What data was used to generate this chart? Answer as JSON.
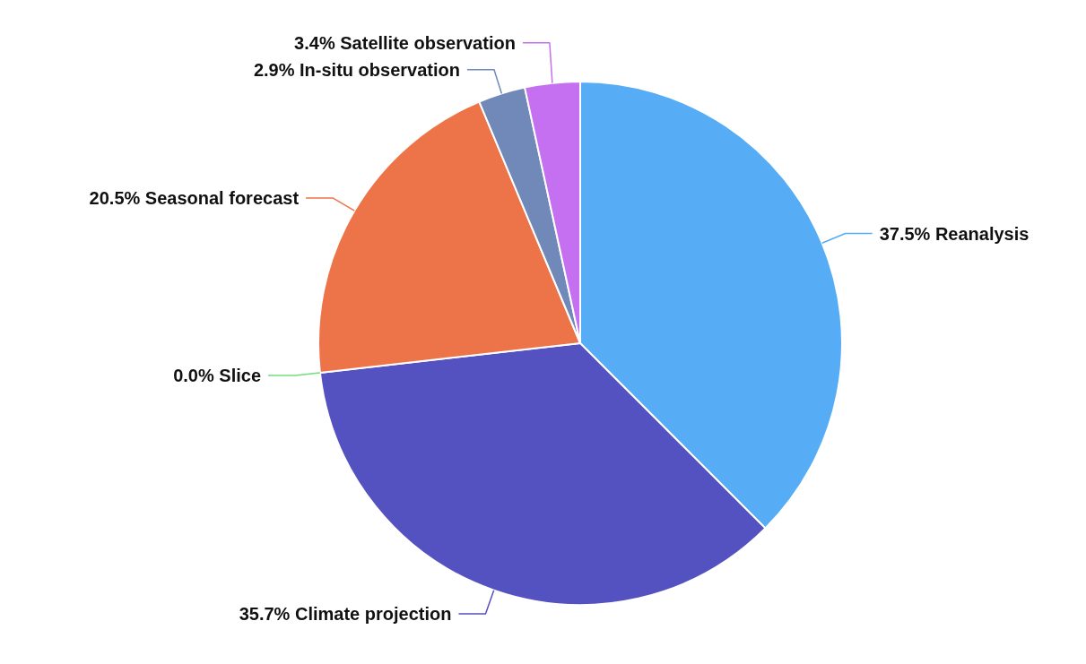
{
  "chart_data": {
    "type": "pie",
    "categories": [
      "Reanalysis",
      "Climate projection",
      "Slice",
      "Seasonal forecast",
      "In-situ observation",
      "Satellite observation"
    ],
    "values": [
      37.5,
      35.7,
      0.0,
      20.5,
      2.9,
      3.4
    ],
    "value_labels": [
      "37.5%",
      "35.7%",
      "0.0%",
      "20.5%",
      "2.9%",
      "3.4%"
    ],
    "colors": [
      "#56adf5",
      "#5451c0",
      "#6de07a",
      "#ec7448",
      "#7189b9",
      "#c470f0"
    ]
  }
}
